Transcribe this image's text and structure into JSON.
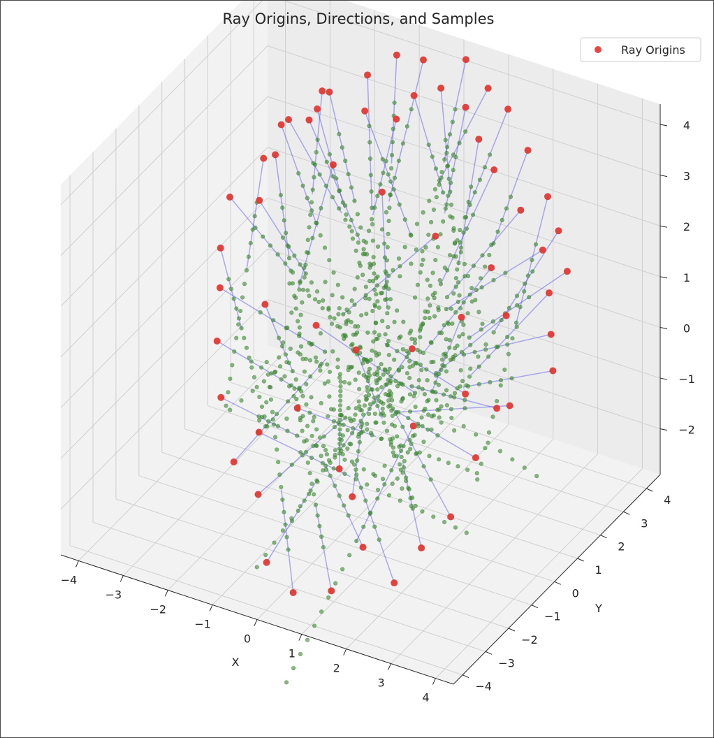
{
  "chart_data": {
    "type": "scatter3d",
    "title": "Ray Origins, Directions, and Samples",
    "xlabel": "X",
    "ylabel": "Y",
    "zlabel": "",
    "xlim": [
      -4.4,
      4.4
    ],
    "ylim": [
      -4.4,
      4.6
    ],
    "zlim": [
      -2.9,
      4.4
    ],
    "xticks": [
      -4,
      -3,
      -2,
      -1,
      0,
      1,
      2,
      3,
      4
    ],
    "yticks": [
      -4,
      -3,
      -2,
      -1,
      0,
      1,
      2,
      3,
      4
    ],
    "zticks": [
      -2,
      -1,
      0,
      1,
      2,
      3,
      4
    ],
    "grid": true,
    "legend": {
      "placement": "top-right",
      "entries": [
        "Ray Origins"
      ]
    },
    "colors": {
      "origins": "#e03530",
      "directions": "#3a3aee",
      "samples": "#3b8a2e"
    },
    "series": [
      {
        "name": "Ray Origins",
        "marker": "circle"
      }
    ],
    "ray_count": 64,
    "samples_per_ray": 16,
    "origins": [
      [
        -3.4,
        2.3,
        1.3
      ],
      [
        -3.1,
        1.9,
        2.4
      ],
      [
        -2.9,
        2.6,
        2.9
      ],
      [
        -2.6,
        1.7,
        3.3
      ],
      [
        -2.3,
        2.9,
        3.5
      ],
      [
        -2.0,
        2.1,
        3.6
      ],
      [
        -1.5,
        3.2,
        3.2
      ],
      [
        -1.0,
        3.6,
        3.0
      ],
      [
        -0.5,
        3.4,
        3.7
      ],
      [
        0.0,
        3.6,
        3.9
      ],
      [
        0.4,
        3.9,
        3.5
      ],
      [
        0.9,
        3.5,
        3.2
      ],
      [
        1.5,
        3.0,
        3.0
      ],
      [
        2.2,
        2.8,
        2.5
      ],
      [
        2.9,
        2.4,
        2.1
      ],
      [
        3.3,
        1.9,
        1.6
      ],
      [
        3.6,
        1.4,
        1.1
      ],
      [
        3.9,
        0.9,
        0.7
      ],
      [
        3.5,
        -0.2,
        0.4
      ],
      [
        3.2,
        -1.1,
        -0.3
      ],
      [
        3.0,
        -1.8,
        -1.2
      ],
      [
        2.6,
        -2.3,
        -1.7
      ],
      [
        2.3,
        -2.9,
        -2.2
      ],
      [
        1.6,
        -2.9,
        -1.7
      ],
      [
        1.2,
        -3.5,
        -2.4
      ],
      [
        0.5,
        -3.8,
        -2.5
      ],
      [
        -0.2,
        -3.6,
        -2.2
      ],
      [
        -0.8,
        -2.8,
        -1.4
      ],
      [
        -1.5,
        -2.5,
        -1.1
      ],
      [
        -2.2,
        -1.7,
        -0.4
      ],
      [
        -2.7,
        -0.9,
        0.2
      ],
      [
        -3.2,
        0.2,
        0.6
      ],
      [
        -3.6,
        1.0,
        0.9
      ],
      [
        -3.7,
        1.6,
        1.6
      ],
      [
        -3.3,
        2.8,
        2.0
      ],
      [
        -2.8,
        3.3,
        2.6
      ],
      [
        -2.5,
        3.6,
        3.1
      ],
      [
        -1.8,
        3.9,
        3.5
      ],
      [
        -1.3,
        4.2,
        3.9
      ],
      [
        -0.6,
        4.0,
        4.1
      ],
      [
        0.2,
        4.3,
        4.2
      ],
      [
        0.8,
        4.1,
        3.9
      ],
      [
        1.4,
        3.8,
        3.8
      ],
      [
        2.0,
        3.5,
        3.3
      ],
      [
        2.6,
        3.2,
        2.7
      ],
      [
        3.1,
        2.7,
        2.4
      ],
      [
        3.5,
        2.3,
        1.9
      ],
      [
        2.7,
        1.2,
        1.3
      ],
      [
        1.8,
        1.0,
        1.1
      ],
      [
        0.9,
        0.6,
        0.4
      ],
      [
        -0.2,
        0.3,
        0.2
      ],
      [
        -1.2,
        0.5,
        0.3
      ],
      [
        -0.9,
        -0.9,
        -0.6
      ],
      [
        0.4,
        -1.6,
        -1.1
      ],
      [
        1.7,
        -0.9,
        -0.2
      ],
      [
        2.3,
        0.2,
        0.1
      ],
      [
        -1.9,
        2.6,
        2.3
      ],
      [
        -0.7,
        2.4,
        2.2
      ],
      [
        0.6,
        2.2,
        1.8
      ],
      [
        1.9,
        2.1,
        1.6
      ],
      [
        -2.5,
        0.8,
        0.2
      ],
      [
        -1.4,
        -1.6,
        -0.9
      ],
      [
        1.0,
        -2.2,
        -1.2
      ],
      [
        2.9,
        0.4,
        -0.1
      ]
    ]
  }
}
